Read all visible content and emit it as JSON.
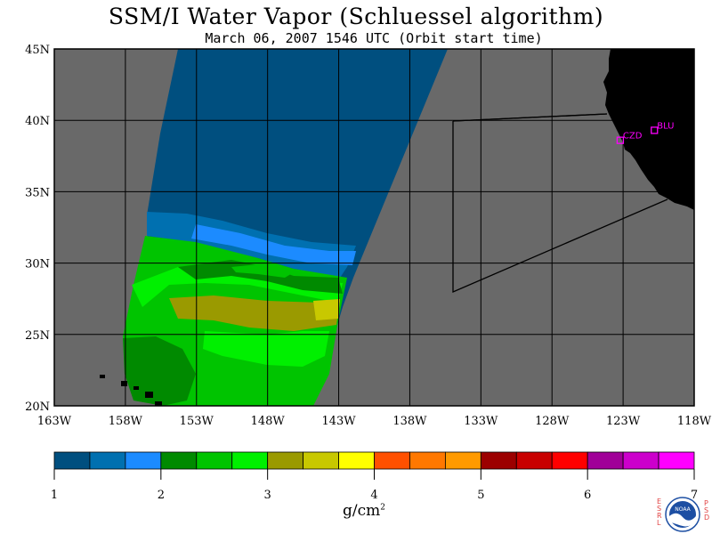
{
  "header": {
    "title": "SSM/I Water Vapor (Schluessel algorithm)",
    "subtitle": "March 06, 2007  1546 UTC  (Orbit start time)"
  },
  "map": {
    "lon_min": -163,
    "lon_max": -118,
    "lat_min": 20,
    "lat_max": 45,
    "x_tick_labels": [
      "163W",
      "158W",
      "153W",
      "148W",
      "143W",
      "138W",
      "133W",
      "128W",
      "123W",
      "118W"
    ],
    "y_tick_labels": [
      "20N",
      "25N",
      "30N",
      "35N",
      "40N",
      "45N"
    ],
    "stations": [
      {
        "name": "CZD",
        "lat": 38.6,
        "lon": -123.2
      },
      {
        "name": "BLU",
        "lat": 39.3,
        "lon": -120.8
      }
    ]
  },
  "colorbar": {
    "min": 1,
    "max": 7,
    "tick_labels": [
      "1",
      "2",
      "3",
      "4",
      "5",
      "6",
      "7"
    ],
    "unit_label": "g/cm",
    "unit_exponent": "2",
    "colors": [
      "#004f7f",
      "#0070b0",
      "#1c8bff",
      "#008a00",
      "#00c400",
      "#00f000",
      "#9a9a00",
      "#c8c800",
      "#ffff00",
      "#ff5000",
      "#ff7800",
      "#ff9a00",
      "#9c0000",
      "#c80000",
      "#ff0000",
      "#a00098",
      "#cc00cc",
      "#ff00ff"
    ]
  },
  "logo": {
    "left_text": "ESRL",
    "right_text": "PSD",
    "emblem_text": "NOAA"
  },
  "colors": {
    "ocean_nodata": "#696969",
    "land": "#000000",
    "station": "#ff00ff"
  }
}
